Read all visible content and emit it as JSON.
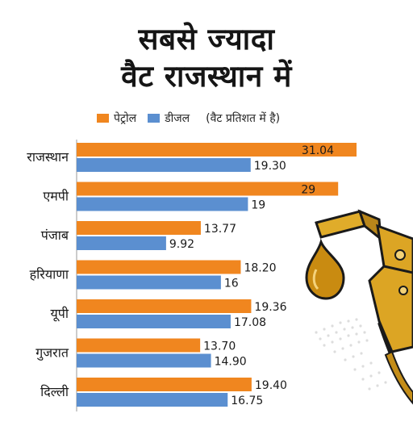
{
  "title": {
    "line1": "सबसे ज्यादा",
    "line2": "वैट राजस्थान में"
  },
  "legend": {
    "petrol": "पेट्रोल",
    "diesel": "डीजल",
    "note": "(वैट प्रतिशत में है)"
  },
  "colors": {
    "petrol": "#f0861f",
    "diesel": "#5b8fd0",
    "text": "#1a1a1a",
    "fuel_nozzle_body": "#d9a21c",
    "oil_drop": "#c98b11"
  },
  "icon": "fuel-nozzle-icon",
  "chart_data": {
    "type": "bar",
    "orientation": "horizontal",
    "title": "सबसे ज्यादा वैट राजस्थान में",
    "categories": [
      "राजस्थान",
      "एमपी",
      "पंजाब",
      "हरियाणा",
      "यूपी",
      "गुजरात",
      "दिल्ली"
    ],
    "series": [
      {
        "name": "पेट्रोल",
        "color": "#f0861f",
        "values": [
          31.04,
          29,
          13.77,
          18.2,
          19.36,
          13.7,
          19.4
        ],
        "labels": [
          "31.04",
          "29",
          "13.77",
          "18.20",
          "19.36",
          "13.70",
          "19.40"
        ]
      },
      {
        "name": "डीजल",
        "color": "#5b8fd0",
        "values": [
          19.3,
          19,
          9.92,
          16,
          17.08,
          14.9,
          16.75
        ],
        "labels": [
          "19.30",
          "19",
          "9.92",
          "16",
          "17.08",
          "14.90",
          "16.75"
        ]
      }
    ],
    "annotation": "(वैट प्रतिशत में है)",
    "xlim": [
      0,
      31.04
    ],
    "grid": false,
    "legend_position": "top"
  }
}
